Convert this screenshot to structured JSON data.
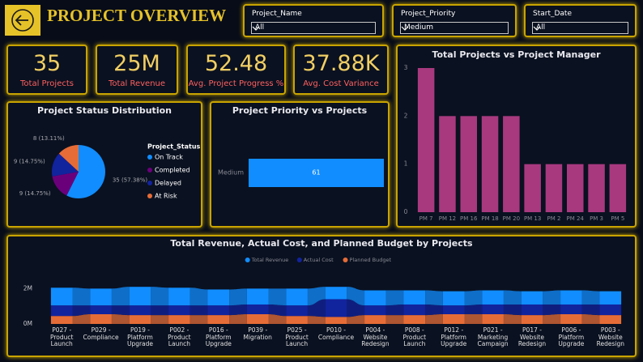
{
  "header": {
    "title": "PROJECT OVERVIEW"
  },
  "slicers": [
    {
      "label": "Project_Name",
      "value": "All"
    },
    {
      "label": "Project_Priority",
      "value": "Medium"
    },
    {
      "label": "Start_Date",
      "value": "All"
    }
  ],
  "kpis": [
    {
      "value": "35",
      "label": "Total Projects"
    },
    {
      "value": "25M",
      "label": "Total Revenue"
    },
    {
      "value": "52.48",
      "label": "Avg. Project Progress %"
    },
    {
      "value": "37.88K",
      "label": "Avg. Cost Variance"
    }
  ],
  "chart_data": [
    {
      "type": "pie",
      "title": "Project Status Distribution",
      "legend_title": "Project_Status",
      "categories": [
        "On Track",
        "Completed",
        "Delayed",
        "At Risk"
      ],
      "values": [
        35,
        9,
        9,
        8
      ],
      "value_labels": [
        "35 (57.38%)",
        "9 (14.75%)",
        "9 (14.75%)",
        "8 (13.11%)"
      ],
      "colors": [
        "#118dff",
        "#6b007b",
        "#12239e",
        "#e66c37"
      ],
      "legend": "right"
    },
    {
      "type": "bar",
      "orientation": "horizontal",
      "title": "Project Priority vs Projects",
      "categories": [
        "Medium"
      ],
      "values": [
        61
      ],
      "color": "#118dff"
    },
    {
      "type": "bar",
      "title": "Total Projects vs Project Manager",
      "categories": [
        "PM 7",
        "PM 12",
        "PM 16",
        "PM 18",
        "PM 20",
        "PM 13",
        "PM 2",
        "PM 24",
        "PM 3",
        "PM 5"
      ],
      "values": [
        3,
        2,
        2,
        2,
        2,
        1,
        1,
        1,
        1,
        1
      ],
      "color": "#a8397f",
      "ylim": [
        0,
        3
      ],
      "yticks": [
        0,
        1,
        2,
        3
      ],
      "grid": false
    },
    {
      "type": "ribbon",
      "title": "Total Revenue, Actual Cost, and Planned Budget by Projects",
      "categories": [
        "P027 - Product Launch",
        "P029 - Compliance",
        "P019 - Platform Upgrade",
        "P002 - Product Launch",
        "P016 - Platform Upgrade",
        "P039 - Migration",
        "P025 - Product Launch",
        "P010 - Compliance",
        "P004 - Website Redesign",
        "P008 - Product Launch",
        "P012 - Platform Upgrade",
        "P021 - Marketing Campaign",
        "P017 - Website Redesign",
        "P006 - Platform Upgrade",
        "P003 - Website Redesign"
      ],
      "series": [
        {
          "name": "Total Revenue",
          "color": "#118dff",
          "values": [
            1000000,
            950000,
            1050000,
            1000000,
            900000,
            900000,
            950000,
            700000,
            850000,
            800000,
            800000,
            800000,
            750000,
            800000,
            750000
          ]
        },
        {
          "name": "Actual Cost",
          "color": "#12239e",
          "values": [
            600000,
            500000,
            550000,
            550000,
            550000,
            550000,
            600000,
            1000000,
            550000,
            600000,
            500000,
            550000,
            600000,
            550000,
            600000
          ]
        },
        {
          "name": "Planned Budget",
          "color": "#e66c37",
          "values": [
            450000,
            550000,
            500000,
            500000,
            500000,
            550000,
            450000,
            400000,
            500000,
            500000,
            550000,
            550000,
            500000,
            550000,
            500000
          ]
        }
      ],
      "ylim": [
        0,
        2200000
      ],
      "yticks": [
        {
          "value": 0,
          "label": "0M"
        },
        {
          "value": 2000000,
          "label": "2M"
        }
      ],
      "legend": "top"
    }
  ]
}
